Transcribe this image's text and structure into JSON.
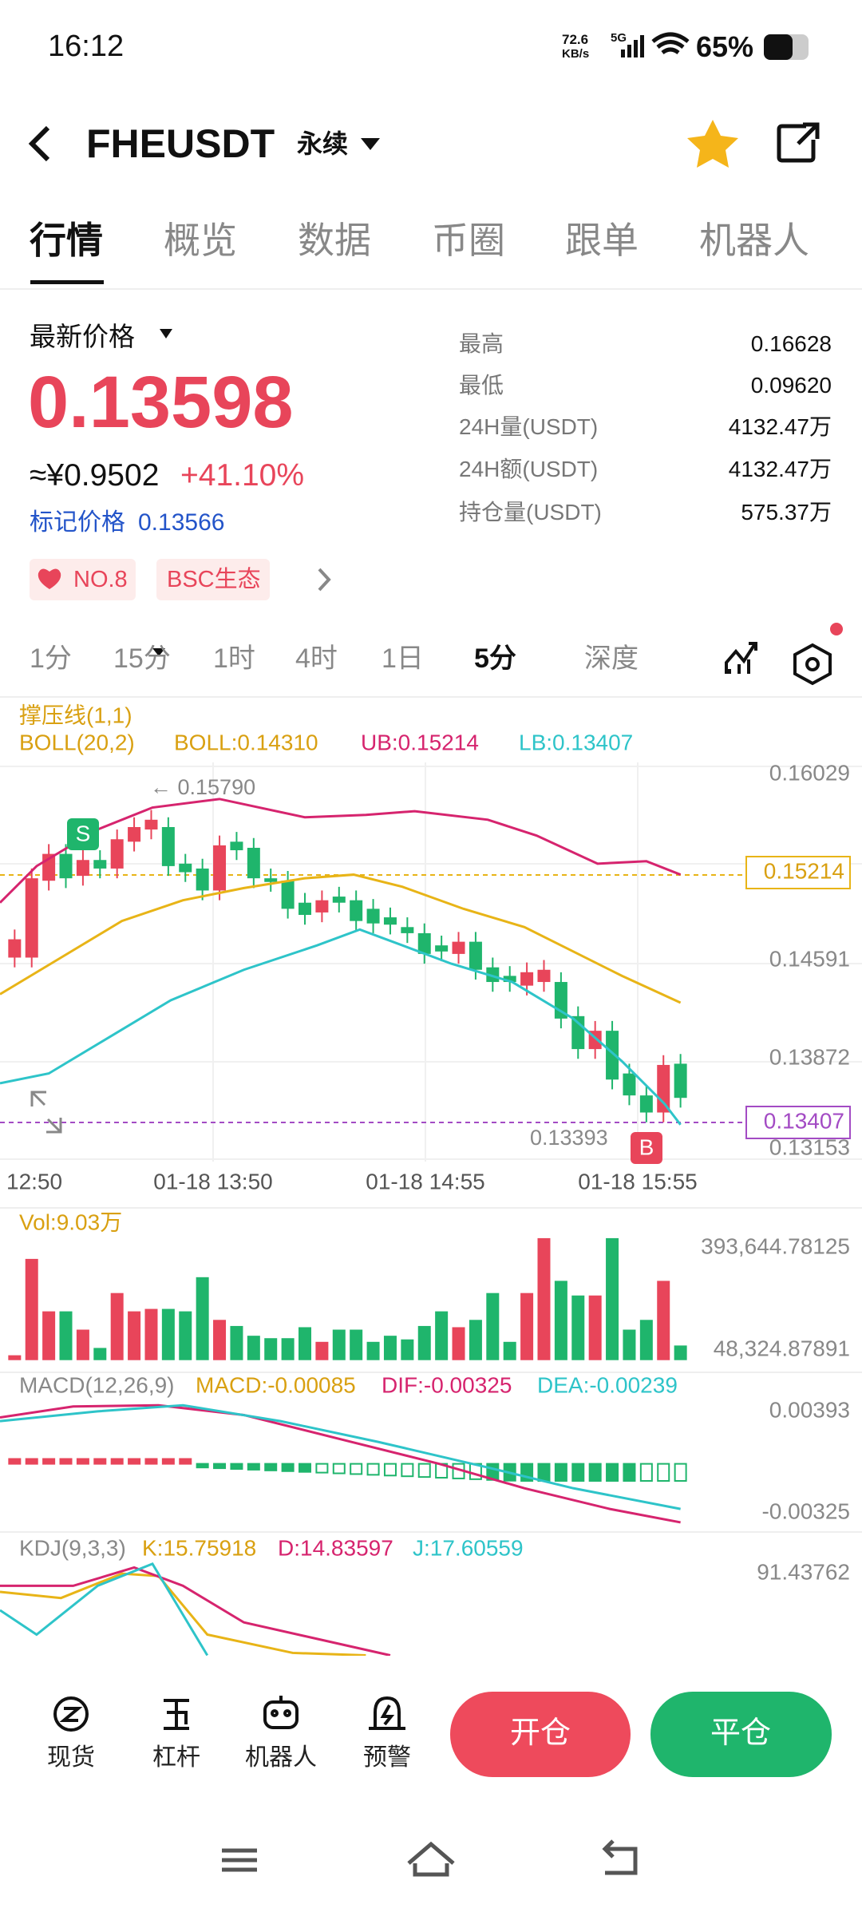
{
  "status_bar": {
    "time": "16:12",
    "net_speed": "72.6",
    "net_unit": "KB/s",
    "network": "5G",
    "battery": "65%"
  },
  "header": {
    "symbol": "FHEUSDT",
    "contract": "永续"
  },
  "tabs": [
    "行情",
    "概览",
    "数据",
    "币圈",
    "跟单",
    "机器人"
  ],
  "price_panel": {
    "label": "最新价格",
    "last_price": "0.13598",
    "cny": "≈¥0.9502",
    "change": "+41.10%",
    "mark_label": "标记价格",
    "mark_price": "0.13566",
    "tags": [
      "NO.8",
      "BSC生态"
    ]
  },
  "stats": [
    {
      "label": "最高",
      "value": "0.16628"
    },
    {
      "label": "最低",
      "value": "0.09620"
    },
    {
      "label": "24H量(USDT)",
      "value": "4132.47万"
    },
    {
      "label": "24H额(USDT)",
      "value": "4132.47万"
    },
    {
      "label": "持仓量(USDT)",
      "value": "575.37万"
    }
  ],
  "intervals": [
    "1分",
    "15分",
    "1时",
    "4时",
    "1日",
    "5分",
    "深度"
  ],
  "chart": {
    "indicator": "撑压线(1,1)",
    "boll_params": "BOLL(20,2)",
    "boll_mid": "BOLL:0.14310",
    "boll_ub": "UB:0.15214",
    "boll_lb": "LB:0.13407",
    "price_axis": [
      "0.16029",
      "0.14591",
      "0.13872",
      "0.13153"
    ],
    "ub_tag": "0.15214",
    "lb_tag": "0.13407",
    "high_marker": "← 0.15790",
    "low_marker": "0.13393",
    "time_axis": [
      "12:50",
      "01-18 13:50",
      "01-18 14:55",
      "01-18 15:55"
    ],
    "signals": [
      "S",
      "B"
    ]
  },
  "volume": {
    "label": "Vol:9.03万",
    "max": "393,644.78125",
    "min": "48,324.87891"
  },
  "macd": {
    "params": "MACD(12,26,9)",
    "macd": "MACD:-0.00085",
    "dif": "DIF:-0.00325",
    "dea": "DEA:-0.00239",
    "axis": [
      "0.00393",
      "-0.00325"
    ]
  },
  "kdj": {
    "params": "KDJ(9,3,3)",
    "k": "K:15.75918",
    "d": "D:14.83597",
    "j": "J:17.60559",
    "axis": "91.43762"
  },
  "toolbar": [
    "现货",
    "杠杆",
    "机器人",
    "预警"
  ],
  "buttons": {
    "open": "开仓",
    "close": "平仓"
  }
}
